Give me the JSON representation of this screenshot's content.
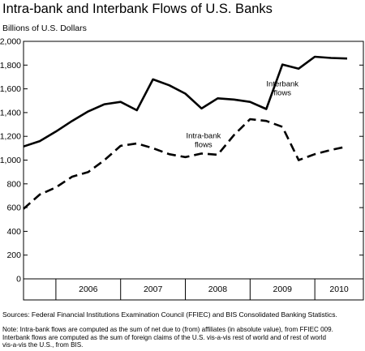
{
  "title": "Intra-bank and Interbank Flows of U.S. Banks",
  "footnotes": {
    "source": "Sources: Federal Financial Institutions Examination Council (FFIEC) and BIS Consolidated Banking Statistics.",
    "note_lines": [
      "Note:  Intra-bank flows are computed as the sum of net due to (from) affiliates (in absolute value), from FFIEC 009.",
      "Interbank flows are computed as the sum of foreign claims of the U.S. vis-a-vis rest of world and of rest of world",
      "vis-a-vis the U.S., from BIS."
    ]
  },
  "chart_data": {
    "type": "line",
    "title": "Intra-bank and Interbank Flows of U.S. Banks",
    "ylabel": "Billions of U.S. Dollars",
    "xlabel": "",
    "ylim": [
      0,
      2000
    ],
    "yticks": [
      0,
      200,
      400,
      600,
      800,
      1000,
      1200,
      1400,
      1600,
      1800,
      2000
    ],
    "ytick_labels": [
      "0",
      "200",
      "400",
      "600",
      "800",
      "1,000",
      "1,200",
      "1,400",
      "1,600",
      "1,800",
      "2,000"
    ],
    "xlim": [
      2005.5,
      2010.75
    ],
    "year_labels": [
      "2006",
      "2007",
      "2008",
      "2009",
      "2010"
    ],
    "grid": false,
    "legend": "none (series labeled directly on chart)",
    "series": [
      {
        "name": "Interbank flows",
        "label_lines": [
          "Interbank",
          "flows"
        ],
        "style": "solid",
        "color": "#000000",
        "x": [
          2005.5,
          2005.75,
          2006.0,
          2006.25,
          2006.5,
          2006.75,
          2007.0,
          2007.25,
          2007.5,
          2007.75,
          2008.0,
          2008.25,
          2008.5,
          2008.75,
          2009.0,
          2009.25,
          2009.5,
          2009.75,
          2010.0,
          2010.25,
          2010.5
        ],
        "values": [
          1115,
          1160,
          1240,
          1330,
          1410,
          1470,
          1490,
          1420,
          1680,
          1630,
          1560,
          1435,
          1520,
          1510,
          1490,
          1430,
          1805,
          1770,
          1870,
          1860,
          1855
        ]
      },
      {
        "name": "Intra-bank flows",
        "label_lines": [
          "Intra-bank",
          "flows"
        ],
        "style": "dashed",
        "color": "#000000",
        "x": [
          2005.5,
          2005.75,
          2006.0,
          2006.25,
          2006.5,
          2006.75,
          2007.0,
          2007.25,
          2007.5,
          2007.75,
          2008.0,
          2008.25,
          2008.5,
          2008.75,
          2009.0,
          2009.25,
          2009.5,
          2009.75,
          2010.0,
          2010.25,
          2010.5
        ],
        "values": [
          590,
          710,
          770,
          860,
          900,
          1000,
          1120,
          1140,
          1100,
          1050,
          1025,
          1055,
          1045,
          1210,
          1345,
          1330,
          1280,
          1000,
          1050,
          1085,
          1115
        ]
      }
    ]
  }
}
